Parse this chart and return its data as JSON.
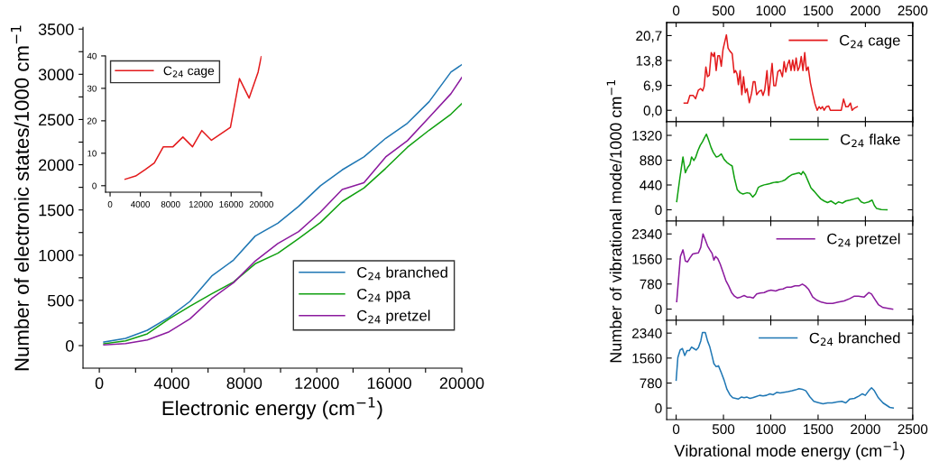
{
  "chart_data": [
    {
      "type": "line",
      "xlabel": "Electronic energy (cm$^{−1}$)",
      "ylabel": "Number of electronic states/1000 cm$^{−1}$",
      "xlim": [
        -900,
        20000
      ],
      "ylim": [
        -250,
        3520
      ],
      "xticks": [
        0,
        {
          "value": 2000,
          "label": null
        },
        4000,
        {
          "value": 6000,
          "label": null
        },
        8000,
        {
          "value": 10000,
          "label": null
        },
        12000,
        {
          "value": 14000,
          "label": null
        },
        16000,
        {
          "value": 18000,
          "label": null
        },
        20000
      ],
      "yticks": [
        0,
        {
          "value": 250,
          "label": null
        },
        500,
        {
          "value": 750,
          "label": null
        },
        1000,
        {
          "value": 1250,
          "label": null
        },
        1500,
        {
          "value": 1750,
          "label": null
        },
        2000,
        {
          "value": 2250,
          "label": null
        },
        2500,
        {
          "value": 2750,
          "label": null
        },
        3000,
        {
          "value": 3250,
          "label": null
        },
        3500
      ],
      "legend": "bottom right",
      "x": [
        250,
        1450,
        2650,
        3850,
        5000,
        6200,
        7400,
        8600,
        9850,
        11000,
        12200,
        13400,
        14600,
        15800,
        17000,
        18200,
        19400,
        20000
      ],
      "series": [
        {
          "name": "C$_{24}$ branched",
          "color": "#1f77b4",
          "values": [
            40,
            80,
            170,
            313,
            489,
            769,
            945,
            1211,
            1354,
            1540,
            1767,
            1943,
            2086,
            2292,
            2459,
            2698,
            3024,
            3107
          ]
        },
        {
          "name": "C$_{24}$ ppa",
          "color": "#10a010",
          "values": [
            20,
            53,
            130,
            296,
            436,
            572,
            702,
            905,
            1021,
            1184,
            1361,
            1594,
            1743,
            1960,
            2193,
            2382,
            2559,
            2675
          ]
        },
        {
          "name": "C$_{24}$ pretzel",
          "color": "#8b1a9e",
          "values": [
            7,
            23,
            63,
            153,
            296,
            519,
            695,
            935,
            1128,
            1261,
            1477,
            1727,
            1800,
            2086,
            2266,
            2525,
            2785,
            2964
          ]
        }
      ]
    },
    {
      "type": "line",
      "xlim": [
        -600,
        20000
      ],
      "ylim": [
        -2,
        40
      ],
      "xticks": [
        0,
        4000,
        8000,
        12000,
        16000,
        20000
      ],
      "yticks": [
        0,
        10,
        20,
        30,
        40
      ],
      "legend": "top left",
      "series": [
        {
          "name": "C$_{24}$ cage",
          "color": "#e31a1c",
          "x": [
            1988,
            3380,
            4652,
            5845,
            7038,
            8310,
            9622,
            10895,
            12127,
            13400,
            15905,
            17097,
            18370,
            19562,
            20000
          ],
          "values": [
            2,
            3,
            5,
            7,
            12,
            12,
            15,
            12,
            17,
            14,
            18,
            33,
            27,
            35,
            40
          ]
        }
      ]
    },
    {
      "type": "line",
      "xlim": [
        -100,
        2500
      ],
      "ylim": [
        -3.2,
        24.3
      ],
      "x2lim": [
        -100,
        2500
      ],
      "x2ticks": [
        0,
        500,
        1000,
        1500,
        2000,
        2500
      ],
      "yticks": [
        {
          "value": 0,
          "label": "0,0"
        },
        {
          "value": 6.9,
          "label": "6,9"
        },
        {
          "value": 13.8,
          "label": "13,8"
        },
        {
          "value": 20.7,
          "label": "20,7"
        }
      ],
      "tick_labels": "y",
      "legend": "top right",
      "series": [
        {
          "name": "C$_{24}$ cage",
          "color": "#e31a1c",
          "x": [
            85,
            121,
            145,
            181,
            205,
            235,
            260,
            281,
            296,
            314,
            332,
            350,
            371,
            392,
            405,
            423,
            441,
            459,
            477,
            495,
            513,
            531,
            549,
            568,
            592,
            613,
            628,
            643,
            658,
            676,
            694,
            712,
            731,
            749,
            773,
            797,
            815,
            833,
            851,
            876,
            900,
            918,
            936,
            960,
            978,
            996,
            1014,
            1032,
            1051,
            1075,
            1099,
            1123,
            1141,
            1159,
            1177,
            1196,
            1214,
            1232,
            1250,
            1268,
            1286,
            1304,
            1322,
            1340,
            1359,
            1377,
            1395,
            1419,
            1443,
            1467,
            1491,
            1510,
            1528,
            1546,
            1564,
            1588,
            1612,
            1630,
            1654,
            1745,
            1769,
            1793,
            1817,
            1842,
            1860,
            1884,
            1914
          ],
          "values": [
            2.0,
            2.0,
            4.1,
            4.1,
            3.2,
            5.6,
            6.0,
            5.4,
            6.6,
            12.0,
            9.3,
            9.7,
            16.0,
            14.9,
            16.0,
            11.0,
            15.1,
            15.1,
            12.2,
            16.8,
            18.9,
            20.9,
            17.2,
            16.4,
            15.7,
            10.4,
            11.0,
            10.1,
            7.1,
            11.0,
            4.3,
            9.3,
            4.9,
            6.0,
            2.1,
            4.7,
            7.9,
            7.9,
            4.3,
            5.2,
            5.6,
            4.1,
            5.6,
            11.0,
            4.1,
            8.5,
            13.0,
            6.8,
            6.8,
            10.7,
            11.2,
            9.3,
            13.5,
            10.6,
            12.6,
            13.9,
            11.0,
            13.9,
            11.0,
            14.5,
            11.0,
            12.0,
            14.9,
            11.0,
            16.0,
            11.0,
            12.0,
            7.6,
            4.6,
            1.8,
            0,
            1.0,
            0.4,
            1.0,
            0,
            1.0,
            1.2,
            0,
            0,
            0,
            3.1,
            1.0,
            1.0,
            2.0,
            0,
            0.6,
            1.0
          ]
        }
      ]
    },
    {
      "type": "line",
      "xlim": [
        -100,
        2500
      ],
      "ylim": [
        -200,
        1560
      ],
      "yticks": [
        0,
        440,
        880,
        1320
      ],
      "tick_labels": "y",
      "legend": "top right",
      "ylabel": "Number of vibrational mode/1000 cm$^{−1}$",
      "series": [
        {
          "name": "C$_{24}$ flake",
          "color": "#10a010",
          "x": [
            6,
            39,
            72,
            97,
            121,
            145,
            163,
            187,
            205,
            229,
            254,
            278,
            302,
            320,
            344,
            368,
            392,
            423,
            447,
            477,
            507,
            537,
            568,
            592,
            616,
            646,
            676,
            706,
            749,
            779,
            809,
            839,
            869,
            900,
            930,
            960,
            990,
            1020,
            1051,
            1081,
            1117,
            1153,
            1189,
            1226,
            1262,
            1298,
            1322,
            1340,
            1365,
            1395,
            1425,
            1455,
            1491,
            1528,
            1564,
            1600,
            1636,
            1685,
            1715,
            1757,
            1793,
            1836,
            1884,
            1920,
            1956,
            1987,
            2035,
            2071,
            2095,
            2119,
            2168,
            2228
          ],
          "values": [
            145,
            560,
            937,
            657,
            749,
            803,
            937,
            873,
            926,
            1045,
            1142,
            1206,
            1287,
            1341,
            1233,
            1110,
            1018,
            937,
            948,
            991,
            894,
            840,
            803,
            776,
            560,
            355,
            302,
            280,
            302,
            291,
            226,
            280,
            399,
            425,
            442,
            452,
            463,
            479,
            490,
            490,
            506,
            533,
            587,
            625,
            641,
            657,
            625,
            679,
            625,
            506,
            388,
            334,
            264,
            194,
            156,
            129,
            156,
            102,
            140,
            118,
            156,
            172,
            194,
            210,
            140,
            118,
            140,
            172,
            75,
            22,
            5,
            0
          ]
        }
      ]
    },
    {
      "type": "line",
      "xlim": [
        -100,
        2500
      ],
      "ylim": [
        -350,
        2740
      ],
      "yticks": [
        0,
        780,
        1560,
        2340
      ],
      "tick_labels": "y",
      "legend": "top right",
      "series": [
        {
          "name": "C$_{24}$ pretzel",
          "color": "#8b1a9e",
          "x": [
            6,
            24,
            45,
            72,
            97,
            121,
            145,
            175,
            205,
            235,
            260,
            284,
            308,
            332,
            356,
            380,
            399,
            417,
            441,
            465,
            495,
            525,
            555,
            586,
            616,
            646,
            682,
            719,
            749,
            779,
            815,
            851,
            888,
            930,
            966,
            1002,
            1051,
            1093,
            1129,
            1171,
            1214,
            1256,
            1298,
            1334,
            1365,
            1401,
            1443,
            1485,
            1534,
            1594,
            1654,
            1715,
            1775,
            1836,
            1884,
            1926,
            1987,
            2035,
            2065,
            2095,
            2137,
            2186,
            2288
          ],
          "values": [
            234,
            890,
            1639,
            1845,
            1498,
            1470,
            1592,
            1714,
            1732,
            1751,
            1920,
            2341,
            2154,
            1966,
            1845,
            1732,
            1526,
            1639,
            1564,
            1405,
            1152,
            890,
            721,
            515,
            403,
            346,
            375,
            421,
            375,
            375,
            346,
            468,
            496,
            515,
            562,
            590,
            562,
            609,
            627,
            684,
            684,
            721,
            721,
            777,
            721,
            609,
            375,
            281,
            215,
            178,
            178,
            215,
            253,
            328,
            403,
            403,
            375,
            515,
            468,
            328,
            140,
            47,
            0
          ]
        }
      ]
    },
    {
      "type": "line",
      "xlim": [
        -100,
        2500
      ],
      "ylim": [
        -360,
        2740
      ],
      "xticks": [
        0,
        500,
        1000,
        1500,
        2000,
        2500
      ],
      "yticks": [
        0,
        780,
        1560,
        2340
      ],
      "legend": "top right",
      "xlabel": "Vibrational mode energy (cm$^{−1}$)",
      "series": [
        {
          "name": "C$_{24}$ branched",
          "color": "#1f77b4",
          "x": [
            0,
            18,
            42,
            66,
            91,
            115,
            139,
            163,
            187,
            211,
            235,
            260,
            278,
            308,
            332,
            356,
            380,
            399,
            423,
            447,
            477,
            507,
            537,
            568,
            598,
            628,
            658,
            688,
            719,
            749,
            779,
            809,
            845,
            882,
            918,
            954,
            990,
            1026,
            1063,
            1099,
            1141,
            1183,
            1226,
            1262,
            1298,
            1334,
            1371,
            1413,
            1455,
            1503,
            1552,
            1600,
            1648,
            1697,
            1751,
            1793,
            1836,
            1884,
            1932,
            1968,
            1999,
            2035,
            2065,
            2095,
            2137,
            2186,
            2258,
            2294
          ],
          "values": [
            868,
            1575,
            1811,
            1858,
            1641,
            1792,
            1792,
            1905,
            1858,
            1811,
            1886,
            2094,
            2358,
            2358,
            2094,
            1905,
            1622,
            1387,
            1292,
            1320,
            1104,
            868,
            585,
            415,
            321,
            302,
            283,
            340,
            321,
            340,
            302,
            321,
            358,
            396,
            377,
            396,
            443,
            415,
            490,
            472,
            490,
            509,
            538,
            566,
            604,
            585,
            538,
            349,
            208,
            170,
            132,
            160,
            160,
            189,
            208,
            160,
            283,
            302,
            377,
            443,
            396,
            538,
            632,
            538,
            321,
            160,
            19,
            0
          ]
        }
      ]
    }
  ]
}
